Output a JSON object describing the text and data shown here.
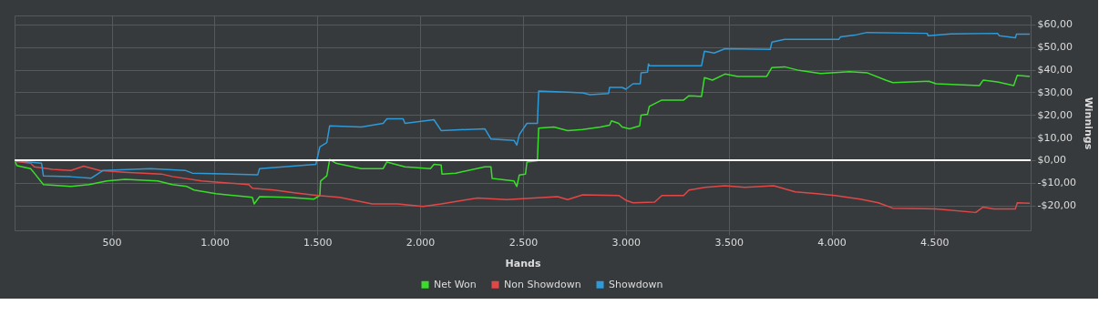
{
  "chart_data": {
    "type": "line",
    "xlabel": "Hands",
    "ylabel": "Winnings",
    "legend": "bottom",
    "grid": true,
    "marker": "none",
    "line_style": "solid",
    "xlim": [
      28,
      4968
    ],
    "ylim": [
      -31,
      64
    ],
    "xticks": [
      500,
      {
        "value": 1000,
        "label": "1.000"
      },
      {
        "value": 1500,
        "label": "1.500"
      },
      {
        "value": 2000,
        "label": "2.000"
      },
      {
        "value": 2500,
        "label": "2.500"
      },
      {
        "value": 3000,
        "label": "3.000"
      },
      {
        "value": 3500,
        "label": "3.500"
      },
      {
        "value": 4000,
        "label": "4.000"
      },
      {
        "value": 4500,
        "label": "4.500"
      }
    ],
    "yticks": [
      {
        "value": -20,
        "label": "-$20,00"
      },
      {
        "value": -10,
        "label": "-$10,00"
      },
      {
        "value": 0,
        "label": "$0,00"
      },
      {
        "value": 10,
        "label": "$10,00"
      },
      {
        "value": 20,
        "label": "$20,00"
      },
      {
        "value": 30,
        "label": "$30,00"
      },
      {
        "value": 40,
        "label": "$40,00"
      },
      {
        "value": 50,
        "label": "$50,00"
      },
      {
        "value": 60,
        "label": "$60,00"
      }
    ],
    "ref_lines": [
      {
        "axis": "y",
        "value": 0,
        "color": "#ffffff"
      }
    ],
    "series": [
      {
        "name": "Net Won",
        "color": "#3ade2a",
        "x": [
          30,
          40,
          106,
          124,
          168,
          302,
          390,
          477,
          565,
          724,
          795,
          866,
          901,
          1007,
          1096,
          1184,
          1193,
          1219,
          1360,
          1484,
          1512,
          1516,
          1546,
          1560,
          1590,
          1714,
          1820,
          1838,
          1926,
          2050,
          2067,
          2102,
          2106,
          2173,
          2314,
          2344,
          2350,
          2456,
          2470,
          2482,
          2512,
          2519,
          2570,
          2576,
          2650,
          2717,
          2790,
          2877,
          2921,
          2930,
          2965,
          2982,
          3018,
          3067,
          3074,
          3105,
          3114,
          3140,
          3175,
          3281,
          3307,
          3368,
          3382,
          3421,
          3482,
          3544,
          3684,
          3710,
          3772,
          3842,
          3947,
          4087,
          4175,
          4263,
          4298,
          4473,
          4508,
          4719,
          4737,
          4807,
          4886,
          4903,
          4964
        ],
        "values": [
          -0.5,
          -2.4,
          -3.7,
          -5.7,
          -10.8,
          -11.6,
          -10.8,
          -9.2,
          -8.5,
          -9.2,
          -10.8,
          -11.6,
          -13.2,
          -14.8,
          -15.6,
          -16.4,
          -19.3,
          -16.1,
          -16.4,
          -17.2,
          -15.6,
          -9.2,
          -6.9,
          0.3,
          -1.3,
          -3.7,
          -3.7,
          -0.8,
          -2.9,
          -3.7,
          -1.8,
          -2.1,
          -6.1,
          -5.7,
          -2.9,
          -2.9,
          -8.1,
          -9.2,
          -11.6,
          -6.5,
          -6.1,
          -0.8,
          -0.2,
          14.2,
          14.7,
          13.1,
          13.6,
          14.7,
          15.5,
          17.4,
          16.3,
          14.7,
          13.9,
          15.2,
          19.9,
          20.3,
          23.8,
          25.0,
          26.6,
          26.6,
          28.5,
          28.2,
          36.5,
          35.4,
          38.1,
          37.0,
          37.0,
          41.0,
          41.3,
          39.7,
          38.3,
          39.1,
          38.6,
          35.4,
          34.3,
          34.9,
          33.8,
          33.0,
          35.4,
          34.6,
          33.0,
          37.5,
          37.0
        ]
      },
      {
        "name": "Non Showdown",
        "color": "#e04848",
        "x": [
          30,
          106,
          124,
          212,
          302,
          364,
          442,
          565,
          742,
          795,
          937,
          1167,
          1184,
          1290,
          1396,
          1502,
          1608,
          1767,
          1891,
          2014,
          2102,
          2279,
          2421,
          2668,
          2717,
          2790,
          2965,
          3000,
          3035,
          3140,
          3175,
          3281,
          3307,
          3386,
          3482,
          3579,
          3719,
          3824,
          3930,
          4017,
          4140,
          4228,
          4298,
          4508,
          4701,
          4737,
          4789,
          4894,
          4903,
          4964
        ],
        "values": [
          -0.5,
          -1.3,
          -2.9,
          -4.0,
          -4.5,
          -2.6,
          -4.5,
          -5.3,
          -6.1,
          -7.2,
          -9.2,
          -10.8,
          -12.4,
          -13.2,
          -14.5,
          -15.6,
          -16.4,
          -19.3,
          -19.3,
          -20.4,
          -19.3,
          -16.7,
          -17.4,
          -16.1,
          -17.4,
          -15.3,
          -15.6,
          -17.7,
          -18.8,
          -18.5,
          -15.6,
          -15.6,
          -13.2,
          -12.0,
          -11.3,
          -12.0,
          -11.3,
          -14.0,
          -14.8,
          -15.6,
          -17.2,
          -18.8,
          -21.2,
          -21.5,
          -23.1,
          -20.7,
          -21.5,
          -21.5,
          -18.8,
          -19.0
        ]
      },
      {
        "name": "Showdown",
        "color": "#2e9ad8",
        "x": [
          30,
          159,
          168,
          302,
          399,
          459,
          689,
          857,
          892,
          1210,
          1219,
          1378,
          1493,
          1512,
          1546,
          1560,
          1714,
          1820,
          1838,
          1917,
          1926,
          2067,
          2102,
          2314,
          2344,
          2456,
          2470,
          2482,
          2519,
          2570,
          2576,
          2717,
          2790,
          2825,
          2916,
          2921,
          2982,
          3000,
          3035,
          3070,
          3074,
          3105,
          3110,
          3114,
          3368,
          3382,
          3430,
          3482,
          3702,
          3710,
          3772,
          4035,
          4043,
          4113,
          4172,
          4465,
          4470,
          4579,
          4807,
          4816,
          4894,
          4899,
          4964
        ],
        "values": [
          -0.2,
          -1.3,
          -6.9,
          -7.3,
          -8.0,
          -4.5,
          -3.7,
          -4.5,
          -5.7,
          -6.4,
          -3.7,
          -2.6,
          -1.8,
          5.9,
          7.8,
          15.2,
          14.7,
          16.3,
          18.3,
          18.3,
          16.3,
          17.9,
          13.1,
          13.9,
          9.4,
          8.8,
          6.7,
          11.3,
          16.3,
          16.3,
          30.6,
          30.1,
          29.8,
          29.0,
          29.5,
          32.2,
          32.2,
          31.4,
          33.8,
          33.8,
          38.6,
          38.9,
          42.6,
          41.8,
          41.8,
          48.2,
          47.4,
          49.3,
          49.0,
          52.2,
          53.4,
          53.4,
          54.5,
          55.3,
          56.5,
          56.1,
          55.0,
          55.8,
          56.1,
          55.0,
          54.1,
          55.7,
          55.7
        ]
      }
    ]
  }
}
